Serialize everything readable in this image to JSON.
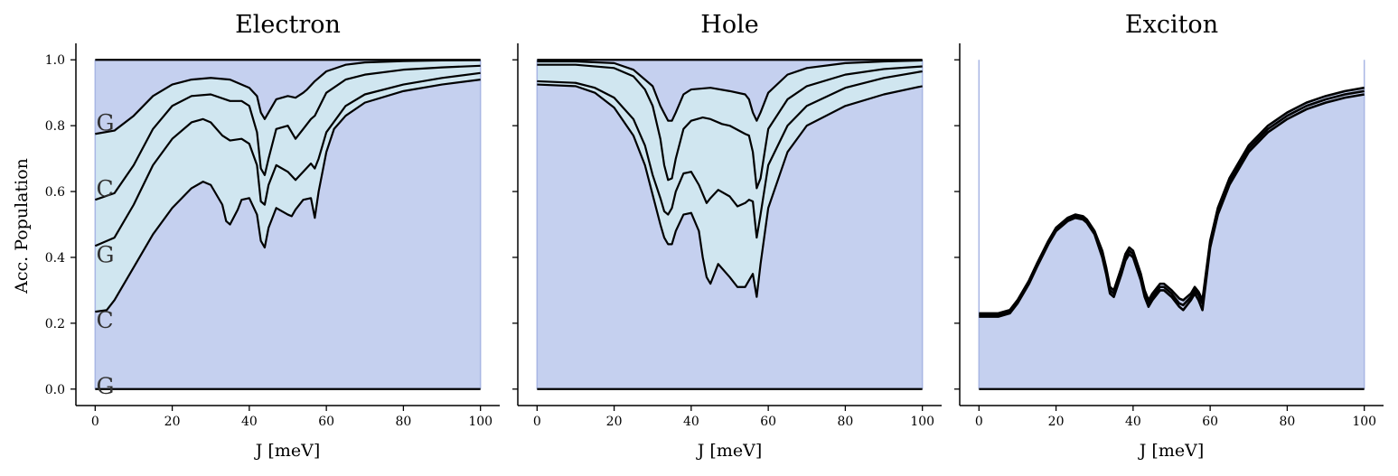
{
  "figure": {
    "ylabel": "Acc. Population"
  },
  "chart_data": [
    {
      "type": "area",
      "title": "Electron",
      "xlabel": "J [meV]",
      "ylabel": "Acc. Population",
      "xlim": [
        -5,
        105
      ],
      "ylim": [
        -0.05,
        1.05
      ],
      "xticks": [
        0,
        20,
        40,
        60,
        80,
        100
      ],
      "yticks": [
        0.0,
        0.2,
        0.4,
        0.6,
        0.8,
        1.0
      ],
      "grid": false,
      "band_labels": [
        {
          "text": "G",
          "x": 0.5,
          "y": 0.81
        },
        {
          "text": "C",
          "x": 0.5,
          "y": 0.61
        },
        {
          "text": "G",
          "x": 0.5,
          "y": 0.41
        },
        {
          "text": "C",
          "x": 0.5,
          "y": 0.21
        },
        {
          "text": "G",
          "x": 0.5,
          "y": 0.01
        }
      ],
      "series": [
        {
          "x": [
            0,
            100
          ],
          "y": [
            1.0,
            1.0
          ]
        },
        {
          "x": [
            0,
            5,
            10,
            15,
            20,
            25,
            30,
            35,
            40,
            42,
            43,
            44,
            45,
            47,
            50,
            52,
            54,
            55,
            57,
            60,
            65,
            70,
            80,
            90,
            100
          ],
          "y": [
            0.775,
            0.785,
            0.83,
            0.89,
            0.925,
            0.94,
            0.945,
            0.94,
            0.915,
            0.89,
            0.84,
            0.82,
            0.84,
            0.88,
            0.89,
            0.885,
            0.9,
            0.91,
            0.935,
            0.965,
            0.985,
            0.992,
            0.996,
            0.998,
            0.999
          ]
        },
        {
          "x": [
            0,
            5,
            10,
            15,
            20,
            25,
            30,
            35,
            38,
            40,
            42,
            43,
            44,
            45,
            47,
            50,
            52,
            54,
            56,
            57,
            60,
            65,
            70,
            80,
            90,
            100
          ],
          "y": [
            0.575,
            0.595,
            0.68,
            0.79,
            0.86,
            0.89,
            0.895,
            0.875,
            0.875,
            0.86,
            0.78,
            0.67,
            0.65,
            0.7,
            0.79,
            0.8,
            0.76,
            0.79,
            0.82,
            0.83,
            0.9,
            0.94,
            0.955,
            0.97,
            0.977,
            0.982
          ]
        },
        {
          "x": [
            0,
            5,
            10,
            15,
            20,
            25,
            28,
            30,
            33,
            35,
            38,
            40,
            42,
            43,
            44,
            45,
            47,
            50,
            52,
            54,
            56,
            57,
            58,
            60,
            65,
            70,
            80,
            90,
            100
          ],
          "y": [
            0.435,
            0.46,
            0.56,
            0.68,
            0.76,
            0.81,
            0.82,
            0.81,
            0.77,
            0.755,
            0.76,
            0.745,
            0.68,
            0.57,
            0.56,
            0.62,
            0.68,
            0.66,
            0.635,
            0.66,
            0.685,
            0.67,
            0.7,
            0.78,
            0.86,
            0.895,
            0.925,
            0.945,
            0.96
          ]
        },
        {
          "x": [
            0,
            3,
            5,
            10,
            15,
            20,
            25,
            28,
            30,
            33,
            34,
            35,
            37,
            38,
            40,
            42,
            43,
            44,
            45,
            47,
            50,
            51,
            52,
            54,
            56,
            57,
            58,
            60,
            62,
            65,
            70,
            80,
            90,
            100
          ],
          "y": [
            0.235,
            0.24,
            0.27,
            0.37,
            0.47,
            0.55,
            0.61,
            0.63,
            0.62,
            0.56,
            0.51,
            0.5,
            0.545,
            0.575,
            0.58,
            0.53,
            0.45,
            0.43,
            0.49,
            0.55,
            0.53,
            0.525,
            0.545,
            0.575,
            0.58,
            0.52,
            0.6,
            0.72,
            0.79,
            0.83,
            0.87,
            0.905,
            0.925,
            0.94
          ]
        },
        {
          "x": [
            0,
            100
          ],
          "y": [
            0.0,
            0.0
          ]
        }
      ]
    },
    {
      "type": "area",
      "title": "Hole",
      "xlabel": "J [meV]",
      "ylabel": "",
      "xlim": [
        -5,
        105
      ],
      "ylim": [
        -0.05,
        1.05
      ],
      "xticks": [
        0,
        20,
        40,
        60,
        80,
        100
      ],
      "yticks": [
        0.0,
        0.2,
        0.4,
        0.6,
        0.8,
        1.0
      ],
      "grid": false,
      "series": [
        {
          "x": [
            0,
            100
          ],
          "y": [
            1.0,
            1.0
          ]
        },
        {
          "x": [
            0,
            10,
            20,
            25,
            30,
            32,
            34,
            35,
            36,
            38,
            40,
            45,
            50,
            54,
            55,
            56,
            57,
            58,
            60,
            65,
            70,
            80,
            90,
            100
          ],
          "y": [
            0.995,
            0.995,
            0.99,
            0.97,
            0.92,
            0.86,
            0.815,
            0.815,
            0.84,
            0.895,
            0.91,
            0.915,
            0.905,
            0.895,
            0.88,
            0.84,
            0.815,
            0.84,
            0.9,
            0.955,
            0.975,
            0.99,
            0.995,
            0.998
          ]
        },
        {
          "x": [
            0,
            10,
            20,
            25,
            28,
            30,
            32,
            33,
            34,
            35,
            36,
            38,
            40,
            43,
            45,
            48,
            50,
            54,
            55,
            56,
            57,
            58,
            60,
            65,
            70,
            80,
            90,
            100
          ],
          "y": [
            0.985,
            0.985,
            0.975,
            0.95,
            0.91,
            0.86,
            0.76,
            0.68,
            0.635,
            0.64,
            0.7,
            0.79,
            0.815,
            0.825,
            0.82,
            0.805,
            0.8,
            0.775,
            0.77,
            0.72,
            0.61,
            0.64,
            0.79,
            0.88,
            0.92,
            0.955,
            0.972,
            0.98
          ]
        },
        {
          "x": [
            0,
            10,
            15,
            20,
            25,
            28,
            30,
            32,
            33,
            34,
            35,
            36,
            38,
            40,
            42,
            44,
            45,
            47,
            50,
            52,
            54,
            55,
            56,
            57,
            58,
            60,
            65,
            70,
            80,
            90,
            100
          ],
          "y": [
            0.935,
            0.93,
            0.915,
            0.885,
            0.82,
            0.74,
            0.65,
            0.58,
            0.54,
            0.53,
            0.55,
            0.6,
            0.655,
            0.66,
            0.62,
            0.565,
            0.58,
            0.605,
            0.585,
            0.555,
            0.565,
            0.575,
            0.57,
            0.46,
            0.53,
            0.68,
            0.8,
            0.86,
            0.915,
            0.945,
            0.965
          ]
        },
        {
          "x": [
            0,
            10,
            15,
            20,
            25,
            28,
            30,
            32,
            33,
            34,
            35,
            36,
            38,
            40,
            42,
            43,
            44,
            45,
            47,
            50,
            52,
            54,
            55,
            56,
            57,
            58,
            60,
            65,
            70,
            80,
            90,
            100
          ],
          "y": [
            0.925,
            0.92,
            0.9,
            0.855,
            0.77,
            0.68,
            0.59,
            0.5,
            0.46,
            0.44,
            0.44,
            0.48,
            0.53,
            0.535,
            0.48,
            0.4,
            0.34,
            0.32,
            0.38,
            0.34,
            0.31,
            0.31,
            0.33,
            0.35,
            0.28,
            0.38,
            0.55,
            0.72,
            0.8,
            0.86,
            0.895,
            0.92
          ]
        },
        {
          "x": [
            0,
            100
          ],
          "y": [
            0.0,
            0.0
          ]
        }
      ]
    },
    {
      "type": "area",
      "title": "Exciton",
      "xlabel": "J [meV]",
      "ylabel": "",
      "xlim": [
        -5,
        105
      ],
      "ylim": [
        -0.05,
        1.05
      ],
      "xticks": [
        0,
        20,
        40,
        60,
        80,
        100
      ],
      "yticks": [
        0.0,
        0.2,
        0.4,
        0.6,
        0.8,
        1.0
      ],
      "grid": false,
      "series": [
        {
          "x": [
            0,
            3,
            5,
            8,
            10,
            13,
            15,
            18,
            20,
            23,
            25,
            27,
            28,
            30,
            32,
            33,
            34,
            35,
            37,
            38,
            39,
            40,
            42,
            43,
            44,
            45,
            47,
            48,
            50,
            52,
            53,
            55,
            56,
            57,
            58,
            60,
            62,
            65,
            70,
            75,
            80,
            85,
            90,
            95,
            100
          ],
          "y": [
            0.23,
            0.23,
            0.23,
            0.24,
            0.27,
            0.33,
            0.38,
            0.45,
            0.49,
            0.52,
            0.53,
            0.525,
            0.515,
            0.48,
            0.42,
            0.37,
            0.31,
            0.3,
            0.37,
            0.41,
            0.43,
            0.42,
            0.35,
            0.3,
            0.27,
            0.29,
            0.32,
            0.32,
            0.3,
            0.275,
            0.27,
            0.29,
            0.31,
            0.295,
            0.27,
            0.45,
            0.55,
            0.64,
            0.74,
            0.8,
            0.84,
            0.87,
            0.89,
            0.905,
            0.915
          ]
        },
        {
          "x": [
            0,
            3,
            5,
            8,
            10,
            13,
            15,
            18,
            20,
            23,
            25,
            27,
            28,
            30,
            32,
            33,
            34,
            35,
            37,
            38,
            39,
            40,
            42,
            43,
            44,
            45,
            47,
            48,
            50,
            52,
            53,
            55,
            56,
            57,
            58,
            60,
            62,
            65,
            70,
            75,
            80,
            85,
            90,
            95,
            100
          ],
          "y": [
            0.225,
            0.225,
            0.225,
            0.235,
            0.265,
            0.325,
            0.375,
            0.445,
            0.485,
            0.515,
            0.525,
            0.52,
            0.51,
            0.475,
            0.41,
            0.36,
            0.3,
            0.29,
            0.36,
            0.4,
            0.42,
            0.41,
            0.34,
            0.29,
            0.26,
            0.28,
            0.31,
            0.31,
            0.29,
            0.26,
            0.255,
            0.28,
            0.3,
            0.285,
            0.26,
            0.44,
            0.54,
            0.63,
            0.73,
            0.79,
            0.83,
            0.86,
            0.88,
            0.895,
            0.905
          ]
        },
        {
          "x": [
            0,
            3,
            5,
            8,
            10,
            13,
            15,
            18,
            20,
            23,
            25,
            27,
            28,
            30,
            32,
            33,
            34,
            35,
            37,
            38,
            39,
            40,
            42,
            43,
            44,
            45,
            47,
            48,
            50,
            52,
            53,
            55,
            56,
            57,
            58,
            60,
            62,
            65,
            70,
            75,
            80,
            85,
            90,
            95,
            100
          ],
          "y": [
            0.22,
            0.22,
            0.22,
            0.23,
            0.26,
            0.32,
            0.37,
            0.44,
            0.48,
            0.51,
            0.52,
            0.515,
            0.505,
            0.47,
            0.4,
            0.35,
            0.29,
            0.28,
            0.35,
            0.39,
            0.41,
            0.4,
            0.33,
            0.28,
            0.25,
            0.27,
            0.3,
            0.3,
            0.28,
            0.25,
            0.24,
            0.27,
            0.29,
            0.27,
            0.24,
            0.43,
            0.53,
            0.62,
            0.72,
            0.78,
            0.82,
            0.85,
            0.87,
            0.885,
            0.895
          ]
        },
        {
          "x": [
            0,
            100
          ],
          "y": [
            0.0,
            0.0
          ]
        }
      ]
    }
  ],
  "colors": {
    "fill_outer": "#c5d0ef",
    "fill_inner": "#d0e6f0",
    "line": "#000000",
    "axis": "#000000",
    "band_label": "#333333"
  }
}
